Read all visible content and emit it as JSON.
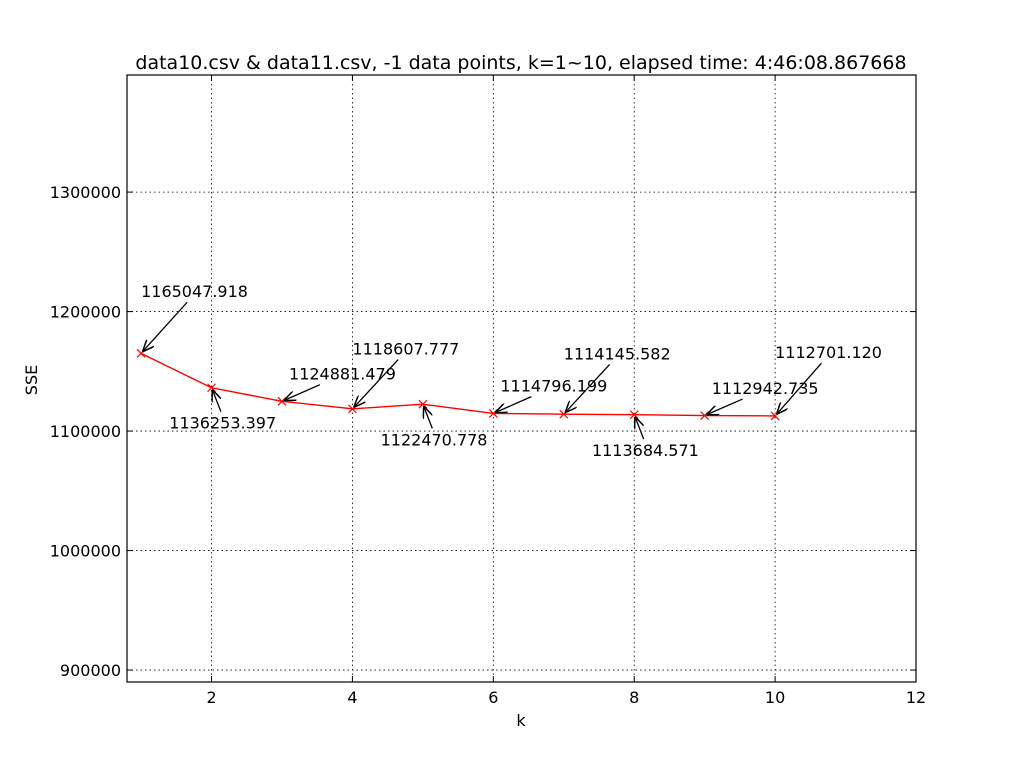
{
  "chart_data": {
    "type": "line",
    "title": "data10.csv & data11.csv, -1 data points, k=1~10, elapsed time: 4:46:08.867668",
    "xlabel": "k",
    "ylabel": "SSE",
    "xlim": [
      0.8,
      12
    ],
    "ylim": [
      890000,
      1398000
    ],
    "xticks": [
      2,
      4,
      6,
      8,
      10,
      12
    ],
    "xtick_labels": [
      "2",
      "4",
      "6",
      "8",
      "10",
      "12"
    ],
    "yticks": [
      900000,
      1000000,
      1100000,
      1200000,
      1300000
    ],
    "ytick_labels": [
      "900000",
      "1000000",
      "1100000",
      "1200000",
      "1300000"
    ],
    "grid": true,
    "series": [
      {
        "color": "#ff0000",
        "marker": "x",
        "x": [
          1,
          2,
          3,
          4,
          5,
          6,
          7,
          8,
          9,
          10
        ],
        "y": [
          1165047.918,
          1136253.397,
          1124881.479,
          1118607.777,
          1122470.778,
          1114796.199,
          1114145.582,
          1113684.571,
          1112942.735,
          1112701.12
        ]
      }
    ],
    "annotations": [
      {
        "text": "1165047.918",
        "x": 1,
        "y": 1165047.918,
        "text_x": 1.0,
        "text_y": 1212000
      },
      {
        "text": "1136253.397",
        "x": 2,
        "y": 1136253.397,
        "text_x": 1.4,
        "text_y": 1102000
      },
      {
        "text": "1124881.479",
        "x": 3,
        "y": 1124881.479,
        "text_x": 3.1,
        "text_y": 1143000
      },
      {
        "text": "1118607.777",
        "x": 4,
        "y": 1118607.777,
        "text_x": 4.0,
        "text_y": 1164000
      },
      {
        "text": "1122470.778",
        "x": 5,
        "y": 1122470.778,
        "text_x": 4.4,
        "text_y": 1088000
      },
      {
        "text": "1114796.199",
        "x": 6,
        "y": 1114796.199,
        "text_x": 6.1,
        "text_y": 1133000
      },
      {
        "text": "1114145.582",
        "x": 7,
        "y": 1114145.582,
        "text_x": 7.0,
        "text_y": 1160000
      },
      {
        "text": "1113684.571",
        "x": 8,
        "y": 1113684.571,
        "text_x": 7.4,
        "text_y": 1079000
      },
      {
        "text": "1112942.735",
        "x": 9,
        "y": 1112942.735,
        "text_x": 9.1,
        "text_y": 1131000
      },
      {
        "text": "1112701.120",
        "x": 10,
        "y": 1112701.12,
        "text_x": 10.0,
        "text_y": 1161000
      }
    ]
  }
}
